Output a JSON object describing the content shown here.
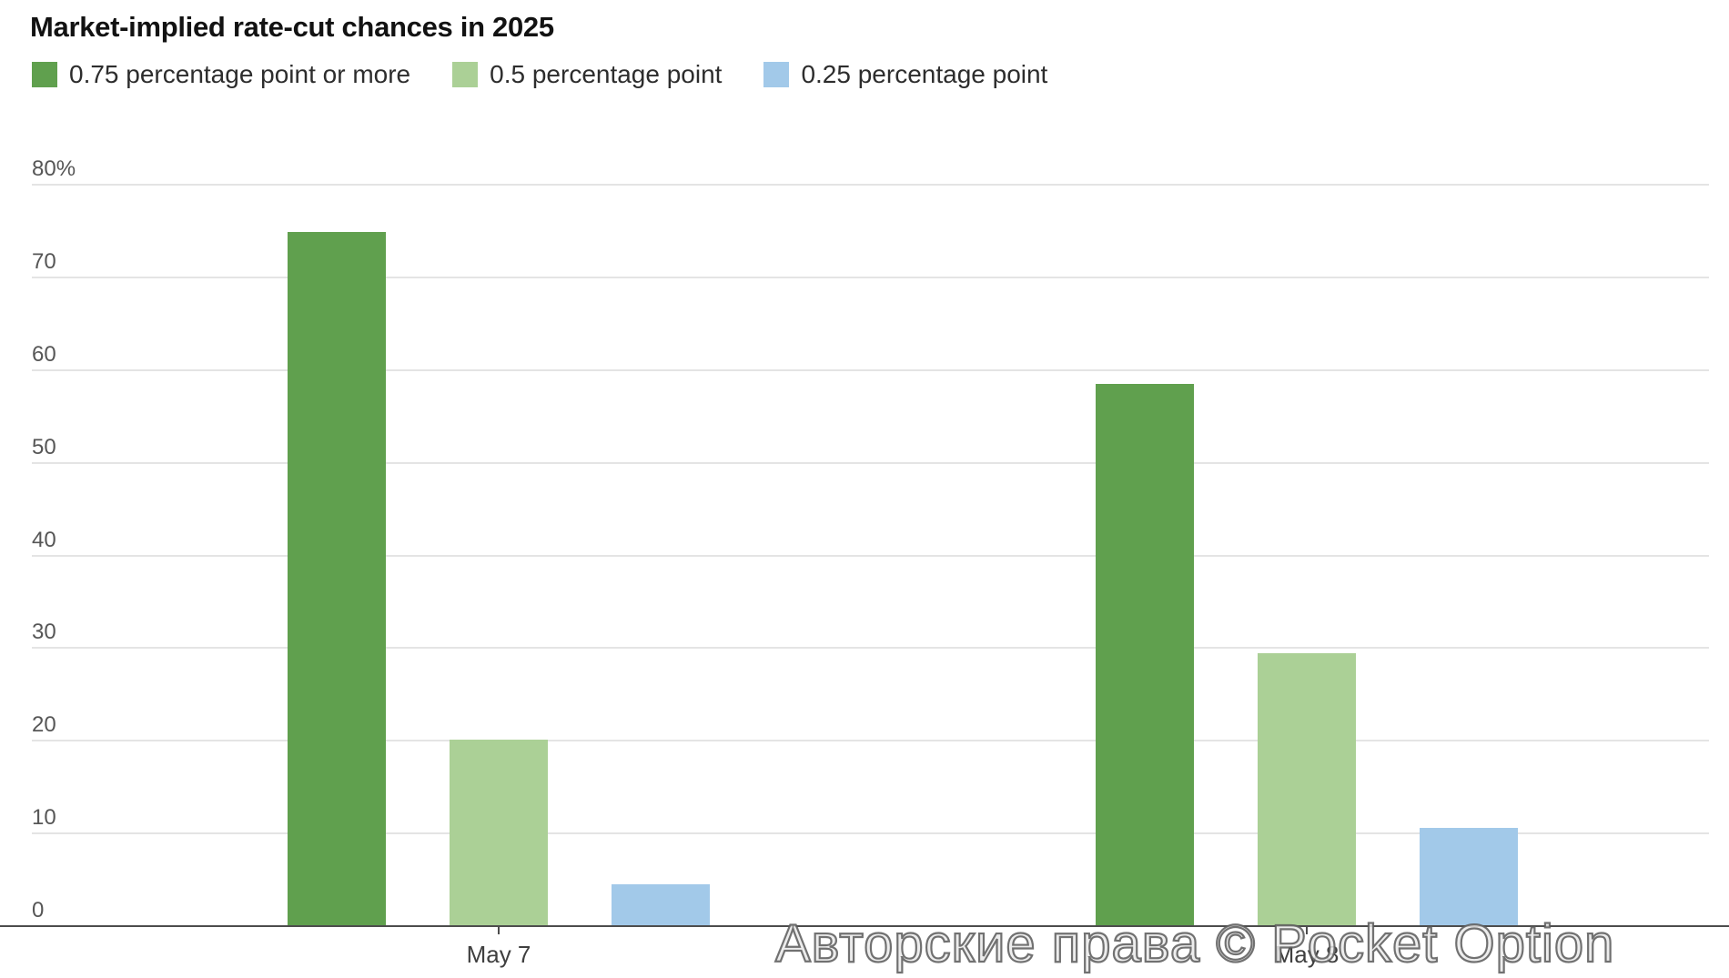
{
  "title": "Market-implied rate-cut chances in 2025",
  "legend": [
    {
      "label": "0.75 percentage point or more",
      "color": "#60a04e"
    },
    {
      "label": "0.5 percentage point",
      "color": "#abd096"
    },
    {
      "label": "0.25 percentage point",
      "color": "#a2c9e9"
    }
  ],
  "watermark_text": "Авторские права © Pocket Option",
  "chart_data": {
    "type": "bar",
    "title": "Market-implied rate-cut chances in 2025",
    "categories": [
      "May 7",
      "May 8"
    ],
    "series": [
      {
        "name": "0.75 percentage point or more",
        "color": "#60a04e",
        "values": [
          74.9,
          58.5
        ]
      },
      {
        "name": "0.5 percentage point",
        "color": "#abd096",
        "values": [
          20.1,
          29.4
        ]
      },
      {
        "name": "0.25 percentage point",
        "color": "#a2c9e9",
        "values": [
          4.5,
          10.6
        ]
      }
    ],
    "xlabel": "",
    "ylabel": "",
    "ylim": [
      0,
      80
    ],
    "ytick_values": [
      80,
      70,
      60,
      50,
      40,
      30,
      20,
      10,
      0
    ],
    "ytick_labels": [
      "80%",
      "70",
      "60",
      "50",
      "40",
      "30",
      "20",
      "10",
      "0"
    ],
    "grid": true,
    "legend_position": "top"
  }
}
